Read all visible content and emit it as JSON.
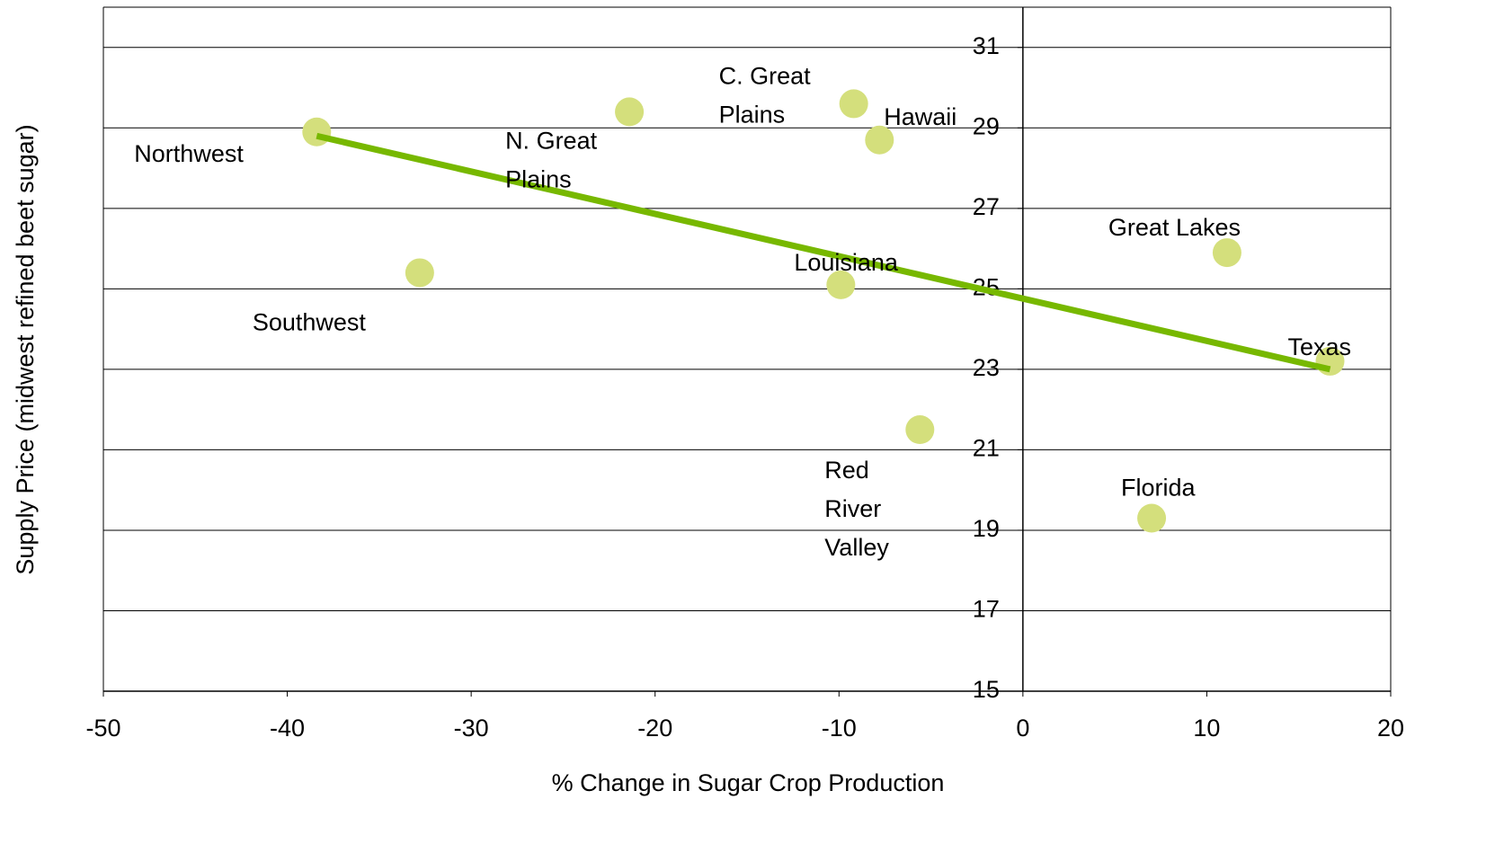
{
  "chart_data": {
    "type": "scatter",
    "x_label": "% Change in Sugar Crop Production",
    "y_label": "Supply Price (midwest refined beet sugar)",
    "labels": [
      [
        "Northwest"
      ],
      [
        "Southwest"
      ],
      [
        "N. Great",
        "Plains"
      ],
      [
        "C. Great",
        "Plains"
      ],
      [
        "Hawaii"
      ],
      [
        "Louisiana"
      ],
      [
        "Red",
        "River",
        "Valley"
      ],
      [
        "Great Lakes"
      ],
      [
        "Florida"
      ],
      [
        "Texas"
      ]
    ],
    "x": [
      -38.4,
      -32.8,
      -21.4,
      -9.2,
      -7.8,
      -9.9,
      -5.6,
      11.1,
      7.0,
      16.7
    ],
    "values": [
      28.9,
      25.4,
      29.4,
      29.6,
      28.7,
      25.1,
      21.5,
      25.9,
      19.3,
      23.2
    ],
    "color": "#d4df7c",
    "trendline": {
      "x": [
        -38.4,
        16.7
      ],
      "values": [
        28.8,
        23.0
      ],
      "color": "#77b800"
    },
    "xlim": [
      -50,
      20
    ],
    "xticks": [
      -50,
      -40,
      -30,
      -20,
      -10,
      0,
      10,
      20
    ],
    "ylim": [
      15,
      32
    ],
    "yticks": [
      15,
      17,
      19,
      21,
      23,
      25,
      27,
      29,
      31
    ],
    "grid": true
  }
}
